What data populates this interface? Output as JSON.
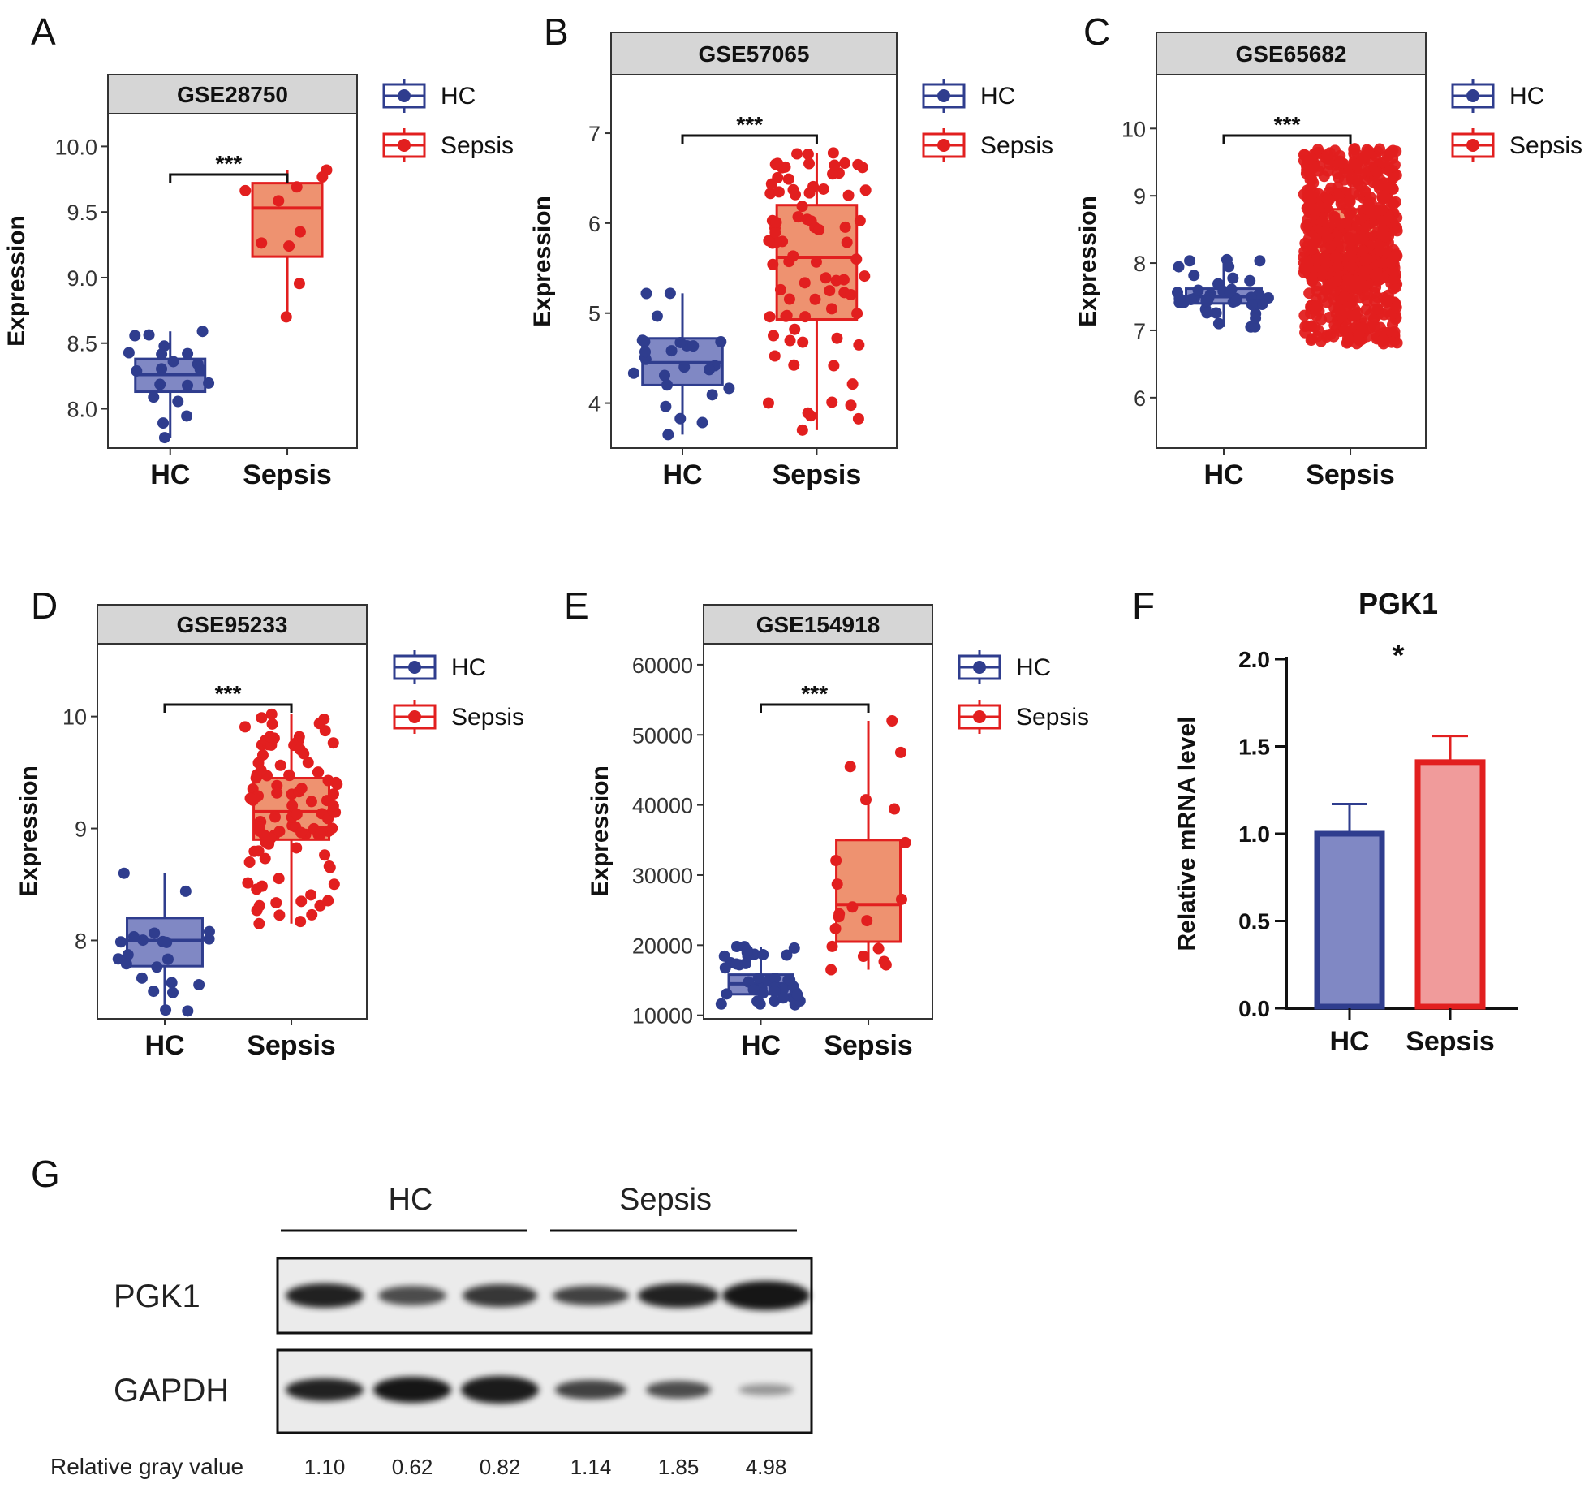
{
  "figure": {
    "colors": {
      "hc": "#2f3d8e",
      "hc_fill": "#8088c4",
      "sepsis": "#e21f1f",
      "sepsis_fill": "#ee9270",
      "strip_bg": "#d6d6d6",
      "axis": "#333333"
    }
  },
  "chart_data": [
    {
      "panel": "A",
      "type": "box",
      "title": "GSE28750",
      "ylabel": "Expression",
      "categories": [
        "HC",
        "Sepsis"
      ],
      "ylim": [
        7.7,
        10.25
      ],
      "yticks": [
        8.0,
        8.5,
        9.0,
        9.5,
        10.0
      ],
      "ytick_labels": [
        "8.0",
        "8.5",
        "9.0",
        "9.5",
        "10.0"
      ],
      "legend": [
        "HC",
        "Sepsis"
      ],
      "significance": "***",
      "boxes": [
        {
          "group": "HC",
          "min": 7.78,
          "q1": 8.13,
          "median": 8.26,
          "q3": 8.38,
          "max": 8.59,
          "n": 20
        },
        {
          "group": "Sepsis",
          "min": 8.7,
          "q1": 9.16,
          "median": 9.53,
          "q3": 9.72,
          "max": 9.82,
          "n": 10
        }
      ]
    },
    {
      "panel": "B",
      "type": "box",
      "title": "GSE57065",
      "ylabel": "Expression",
      "categories": [
        "HC",
        "Sepsis"
      ],
      "ylim": [
        3.5,
        7.65
      ],
      "yticks": [
        4,
        5,
        6,
        7
      ],
      "ytick_labels": [
        "4",
        "5",
        "6",
        "7"
      ],
      "legend": [
        "HC",
        "Sepsis"
      ],
      "significance": "***",
      "boxes": [
        {
          "group": "HC",
          "min": 3.65,
          "q1": 4.2,
          "median": 4.45,
          "q3": 4.72,
          "max": 5.22,
          "n": 25
        },
        {
          "group": "Sepsis",
          "min": 3.7,
          "q1": 4.93,
          "median": 5.62,
          "q3": 6.2,
          "max": 6.78,
          "n": 82
        }
      ]
    },
    {
      "panel": "C",
      "type": "box",
      "title": "GSE65682",
      "ylabel": "Expression",
      "categories": [
        "HC",
        "Sepsis"
      ],
      "ylim": [
        5.25,
        10.8
      ],
      "yticks": [
        6,
        7,
        8,
        9,
        10
      ],
      "ytick_labels": [
        "6",
        "7",
        "8",
        "9",
        "10"
      ],
      "legend": [
        "HC",
        "Sepsis"
      ],
      "significance": "***",
      "boxes": [
        {
          "group": "HC",
          "min": 7.05,
          "q1": 7.4,
          "median": 7.5,
          "q3": 7.62,
          "max": 8.05,
          "n": 42
        },
        {
          "group": "Sepsis",
          "min": 6.8,
          "q1": 7.75,
          "median": 8.1,
          "q3": 8.8,
          "max": 9.7,
          "n": 760
        }
      ]
    },
    {
      "panel": "D",
      "type": "box",
      "title": "GSE95233",
      "ylabel": "Expression",
      "categories": [
        "HC",
        "Sepsis"
      ],
      "ylim": [
        7.3,
        10.65
      ],
      "yticks": [
        8,
        9,
        10
      ],
      "ytick_labels": [
        "8",
        "9",
        "10"
      ],
      "legend": [
        "HC",
        "Sepsis"
      ],
      "significance": "***",
      "boxes": [
        {
          "group": "HC",
          "min": 7.37,
          "q1": 7.77,
          "median": 8.0,
          "q3": 8.2,
          "max": 8.6,
          "n": 22
        },
        {
          "group": "Sepsis",
          "min": 8.15,
          "q1": 8.9,
          "median": 9.15,
          "q3": 9.45,
          "max": 10.02,
          "n": 102
        }
      ]
    },
    {
      "panel": "E",
      "type": "box",
      "title": "GSE154918",
      "ylabel": "Expression",
      "categories": [
        "HC",
        "Sepsis"
      ],
      "ylim": [
        9500,
        63000
      ],
      "yticks": [
        10000,
        20000,
        30000,
        40000,
        50000,
        60000
      ],
      "ytick_labels": [
        "10000",
        "20000",
        "30000",
        "40000",
        "50000",
        "60000"
      ],
      "legend": [
        "HC",
        "Sepsis"
      ],
      "significance": "***",
      "boxes": [
        {
          "group": "HC",
          "min": 11500,
          "q1": 13000,
          "median": 14500,
          "q3": 15800,
          "max": 19800,
          "n": 40
        },
        {
          "group": "Sepsis",
          "min": 16500,
          "q1": 20500,
          "median": 25800,
          "q3": 35000,
          "max": 52000,
          "n": 20
        }
      ]
    },
    {
      "panel": "F",
      "type": "bar",
      "title": "PGK1",
      "ylabel": "Relative mRNA level",
      "categories": [
        "HC",
        "Sepsis"
      ],
      "values": [
        1.0,
        1.41
      ],
      "errors": [
        0.17,
        0.15
      ],
      "ylim": [
        0,
        2.0
      ],
      "yticks": [
        0.0,
        0.5,
        1.0,
        1.5,
        2.0
      ],
      "ytick_labels": [
        "0.0",
        "0.5",
        "1.0",
        "1.5",
        "2.0"
      ],
      "significance": "*"
    },
    {
      "panel": "G",
      "type": "table",
      "title": "Western blot",
      "groups": [
        "HC",
        "Sepsis"
      ],
      "bands": [
        "PGK1",
        "GAPDH"
      ],
      "row_label": "Relative gray value",
      "values": [
        "1.10",
        "0.62",
        "0.82",
        "1.14",
        "1.85",
        "4.98"
      ]
    }
  ]
}
